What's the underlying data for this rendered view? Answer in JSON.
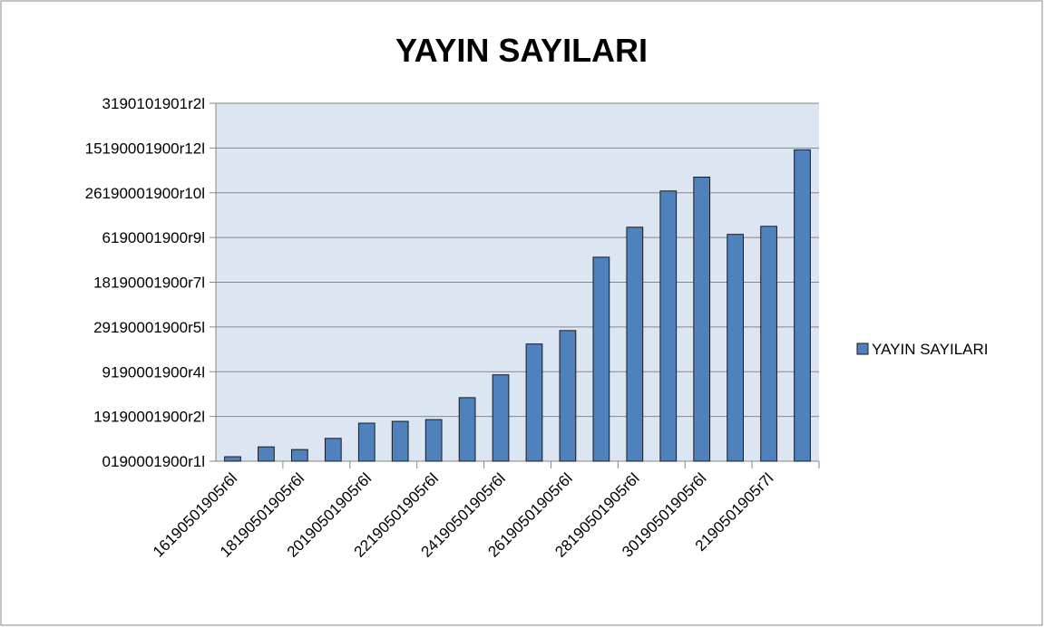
{
  "chart_data": {
    "type": "bar",
    "title": "YAYIN SAYILARI",
    "categories": [
      "16190501905r6l",
      null,
      "18190501905r6l",
      null,
      "20190501905r6l",
      null,
      "22190501905r6l",
      null,
      "24190501905r6l",
      null,
      "26190501905r6l",
      null,
      "28190501905r6l",
      null,
      "30190501905r6l",
      null,
      "2190501905r7l",
      null
    ],
    "series": [
      {
        "name": "YAYIN SAYILARI",
        "color": "#4f81bd",
        "values": [
          0.1,
          0.32,
          0.26,
          0.51,
          0.85,
          0.89,
          0.93,
          1.42,
          1.93,
          2.62,
          2.92,
          4.56,
          5.23,
          6.04,
          6.35,
          5.07,
          5.25,
          6.96
        ]
      }
    ],
    "ylim": [
      0,
      8
    ],
    "yticks": [
      {
        "value": 0,
        "label": "0190001900r1l"
      },
      {
        "value": 1,
        "label": "19190001900r2l"
      },
      {
        "value": 2,
        "label": "9190001900r4l"
      },
      {
        "value": 3,
        "label": "29190001900r5l"
      },
      {
        "value": 4,
        "label": "18190001900r7l"
      },
      {
        "value": 5,
        "label": "6190001900r9l"
      },
      {
        "value": 6,
        "label": "26190001900r10l"
      },
      {
        "value": 7,
        "label": "15190001900r12l"
      },
      {
        "value": 8,
        "label": "3190101901r2l"
      }
    ],
    "grid": true,
    "legend": "right"
  }
}
